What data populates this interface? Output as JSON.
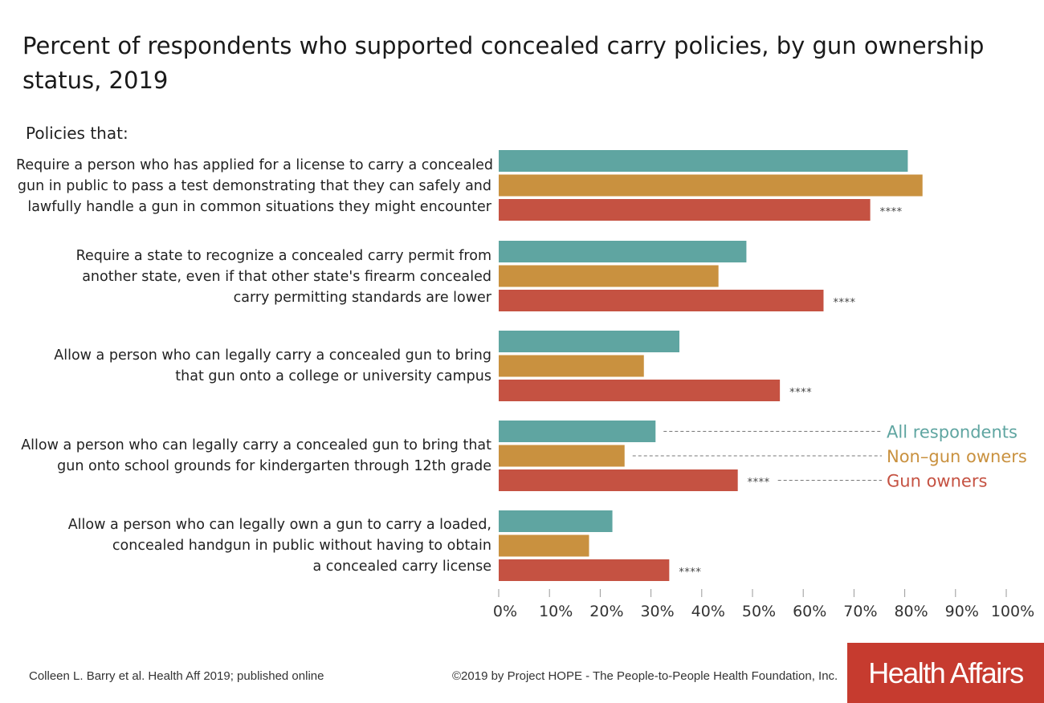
{
  "header": {
    "title_line1": "Percent of respondents who supported concealed carry policies, by gun ownership",
    "title_line2": "status, 2019",
    "subhead": "Policies that:"
  },
  "colors": {
    "all": "#5fa5a1",
    "non": "#c9913f",
    "gun": "#c55242"
  },
  "chart_data": {
    "type": "bar",
    "orientation": "horizontal",
    "title": "Percent of respondents who supported concealed carry policies, by gun ownership status, 2019",
    "categories": [
      [
        "Require a person who has applied for a license to carry a concealed",
        "gun in public to pass a test demonstrating that they can safely and",
        "lawfully handle a gun in common situations they might encounter"
      ],
      [
        "Require a state to recognize a concealed carry permit from",
        "another state, even if that other state's firearm concealed",
        "carry permitting standards are lower"
      ],
      [
        "Allow a person who can legally carry a concealed gun to bring",
        "that gun onto a college or university campus"
      ],
      [
        "Allow a person who can legally carry a concealed gun to bring that",
        "gun onto school grounds for kindergarten through 12th grade"
      ],
      [
        "Allow a person who can legally own a gun to carry a loaded,",
        "concealed handgun in public without having to obtain",
        "a concealed carry license"
      ]
    ],
    "series": [
      {
        "name": "All respondents",
        "values": [
          80.6,
          48.8,
          35.6,
          30.9,
          22.4
        ]
      },
      {
        "name": "Non–gun owners",
        "values": [
          83.5,
          43.3,
          28.6,
          24.8,
          17.8
        ]
      },
      {
        "name": "Gun owners",
        "values": [
          73.2,
          64.0,
          55.4,
          47.1,
          33.6
        ]
      }
    ],
    "significance": [
      "****",
      "****",
      "****",
      "****",
      "****"
    ],
    "xlim": [
      0,
      100
    ],
    "xticks": [
      "0%",
      "10%",
      "20%",
      "30%",
      "40%",
      "50%",
      "60%",
      "70%",
      "80%",
      "90%",
      "100%"
    ],
    "legend": "inline right of fourth group"
  },
  "footer": {
    "citation": "Colleen L. Barry et al. Health Aff 2019; published online",
    "copyright": "©2019 by Project HOPE - The People-to-People Health Foundation, Inc.",
    "logo": "Health Affairs"
  }
}
